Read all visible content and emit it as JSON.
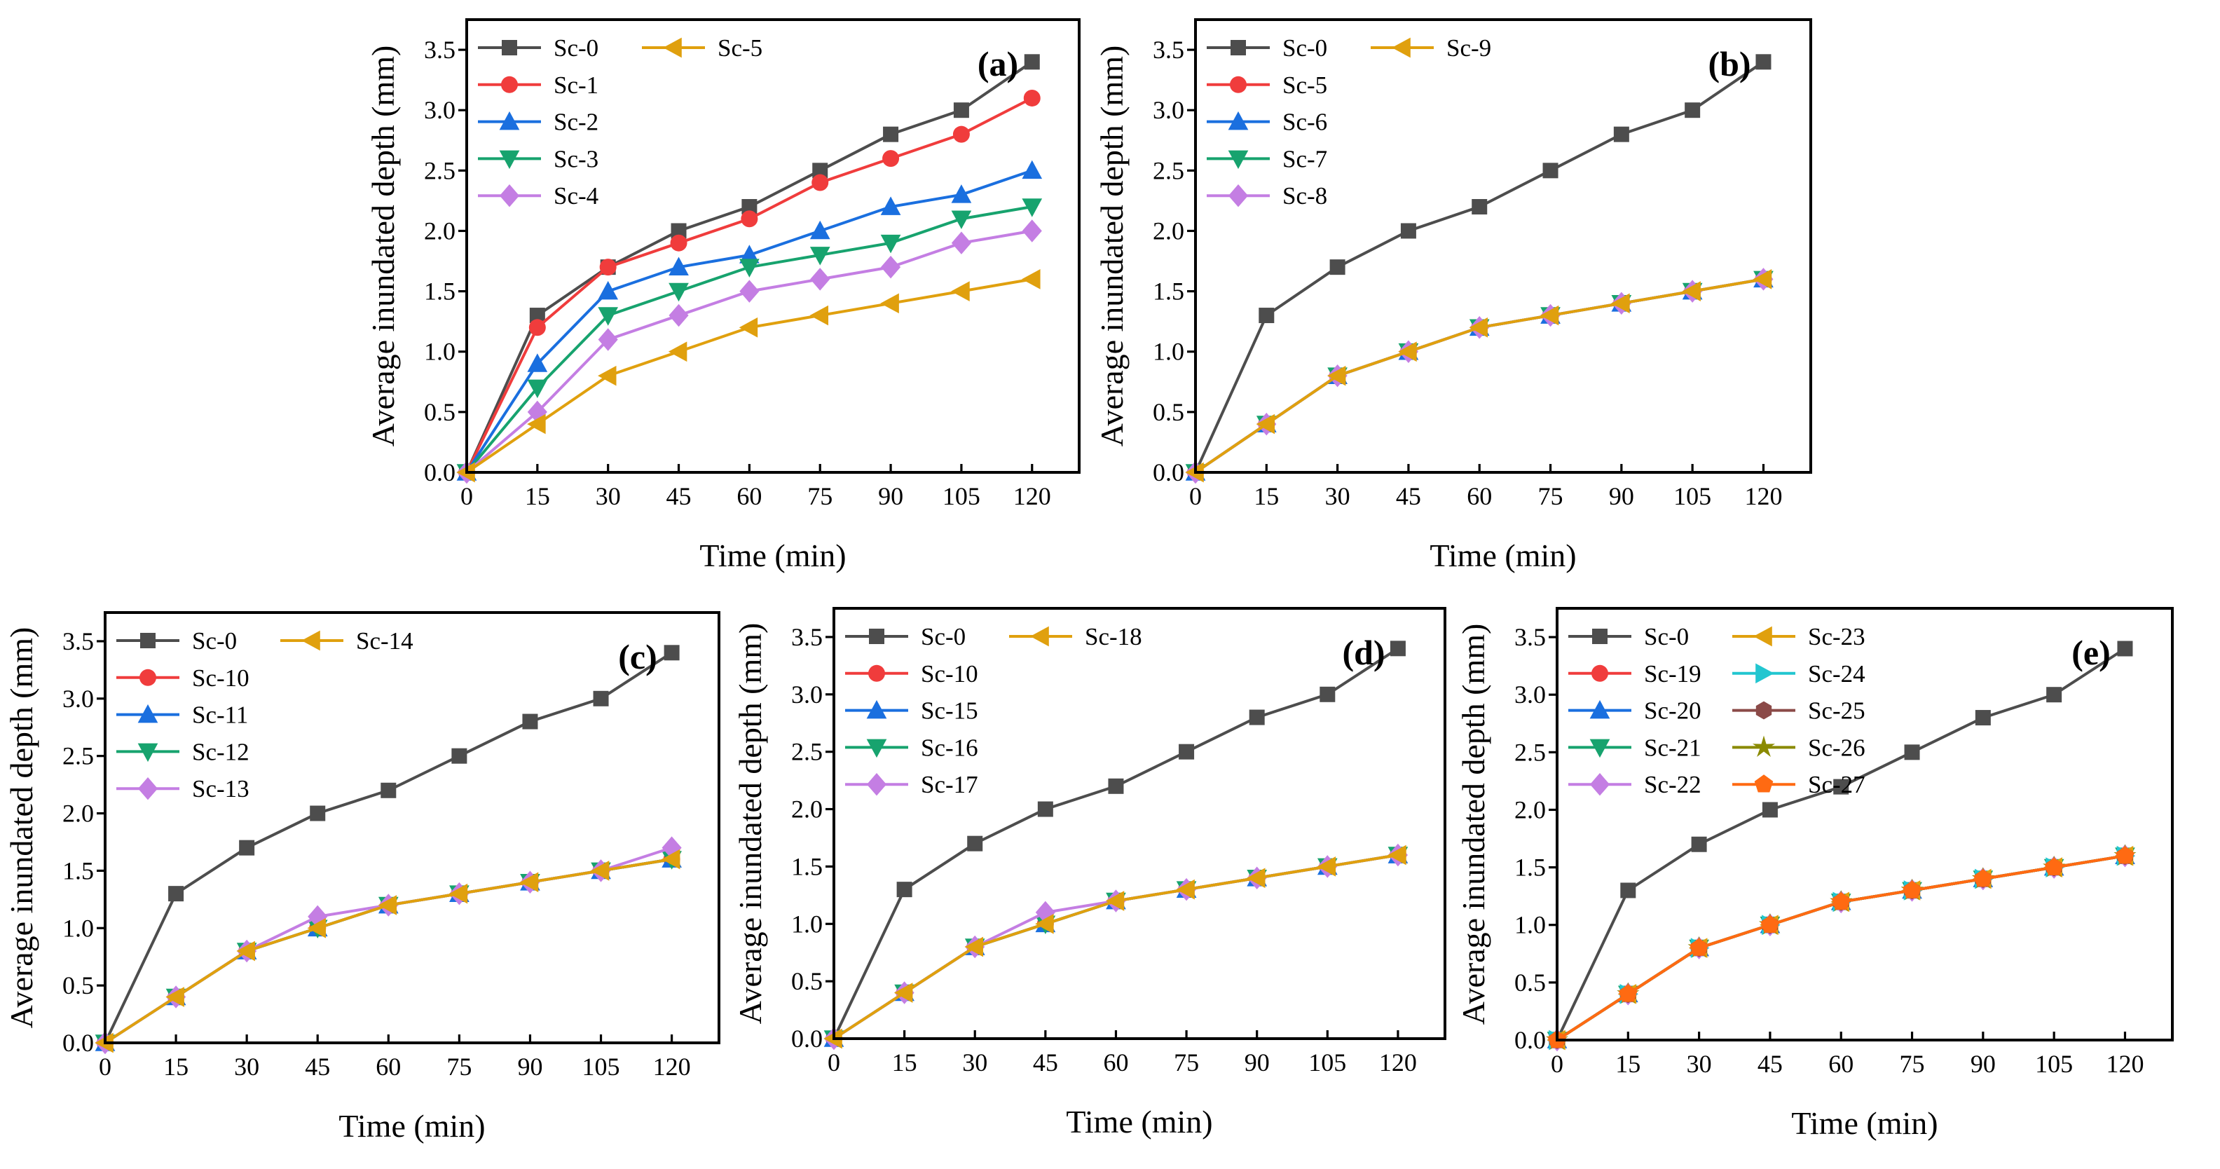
{
  "chart_data": [
    {
      "type": "line",
      "panel_label": "(a)",
      "xlabel": "Time (min)",
      "ylabel": "Average inundated depth (mm)",
      "x": [
        0,
        15,
        30,
        45,
        60,
        75,
        90,
        105,
        120
      ],
      "xticks": [
        "0",
        "15",
        "30",
        "45",
        "60",
        "75",
        "90",
        "105",
        "120"
      ],
      "yticks": [
        "0.0",
        "0.5",
        "1.0",
        "1.5",
        "2.0",
        "2.5",
        "3.0",
        "3.5"
      ],
      "xlim": [
        0,
        130
      ],
      "ylim": [
        0,
        3.75
      ],
      "legend_placement": "top-left",
      "legend_columns": 1,
      "series": [
        {
          "name": "Sc-0",
          "color": "#4d4d4d",
          "marker": "square",
          "values": [
            0,
            1.3,
            1.7,
            2.0,
            2.2,
            2.5,
            2.8,
            3.0,
            3.4
          ]
        },
        {
          "name": "Sc-1",
          "color": "#f03c3c",
          "marker": "circle",
          "values": [
            0,
            1.2,
            1.7,
            1.9,
            2.1,
            2.4,
            2.6,
            2.8,
            3.1
          ]
        },
        {
          "name": "Sc-2",
          "color": "#1a6fdf",
          "marker": "triangle-up",
          "values": [
            0,
            0.9,
            1.5,
            1.7,
            1.8,
            2.0,
            2.2,
            2.3,
            2.5
          ]
        },
        {
          "name": "Sc-3",
          "color": "#17a36e",
          "marker": "triangle-down",
          "values": [
            0,
            0.7,
            1.3,
            1.5,
            1.7,
            1.8,
            1.9,
            2.1,
            2.2
          ]
        },
        {
          "name": "Sc-4",
          "color": "#c47ee3",
          "marker": "diamond",
          "values": [
            0,
            0.5,
            1.1,
            1.3,
            1.5,
            1.6,
            1.7,
            1.9,
            2.0
          ]
        },
        {
          "name": "Sc-5",
          "color": "#e0a00e",
          "marker": "triangle-left",
          "values": [
            0,
            0.4,
            0.8,
            1.0,
            1.2,
            1.3,
            1.4,
            1.5,
            1.6
          ]
        }
      ]
    },
    {
      "type": "line",
      "panel_label": "(b)",
      "xlabel": "Time (min)",
      "ylabel": "Average inundated depth (mm)",
      "x": [
        0,
        15,
        30,
        45,
        60,
        75,
        90,
        105,
        120
      ],
      "xticks": [
        "0",
        "15",
        "30",
        "45",
        "60",
        "75",
        "90",
        "105",
        "120"
      ],
      "yticks": [
        "0.0",
        "0.5",
        "1.0",
        "1.5",
        "2.0",
        "2.5",
        "3.0",
        "3.5"
      ],
      "xlim": [
        0,
        130
      ],
      "ylim": [
        0,
        3.75
      ],
      "legend_placement": "top-left",
      "legend_columns": 1,
      "series": [
        {
          "name": "Sc-0",
          "color": "#4d4d4d",
          "marker": "square",
          "values": [
            0,
            1.3,
            1.7,
            2.0,
            2.2,
            2.5,
            2.8,
            3.0,
            3.4
          ]
        },
        {
          "name": "Sc-5",
          "color": "#f03c3c",
          "marker": "circle",
          "values": [
            0,
            0.4,
            0.8,
            1.0,
            1.2,
            1.3,
            1.4,
            1.5,
            1.6
          ]
        },
        {
          "name": "Sc-6",
          "color": "#1a6fdf",
          "marker": "triangle-up",
          "values": [
            0,
            0.4,
            0.8,
            1.0,
            1.2,
            1.3,
            1.4,
            1.5,
            1.6
          ]
        },
        {
          "name": "Sc-7",
          "color": "#17a36e",
          "marker": "triangle-down",
          "values": [
            0,
            0.4,
            0.8,
            1.0,
            1.2,
            1.3,
            1.4,
            1.5,
            1.6
          ]
        },
        {
          "name": "Sc-8",
          "color": "#c47ee3",
          "marker": "diamond",
          "values": [
            0,
            0.4,
            0.8,
            1.0,
            1.2,
            1.3,
            1.4,
            1.5,
            1.6
          ]
        },
        {
          "name": "Sc-9",
          "color": "#e0a00e",
          "marker": "triangle-left",
          "values": [
            0,
            0.4,
            0.8,
            1.0,
            1.2,
            1.3,
            1.4,
            1.5,
            1.6
          ]
        }
      ]
    },
    {
      "type": "line",
      "panel_label": "(c)",
      "xlabel": "Time (min)",
      "ylabel": "Average inundated depth (mm)",
      "x": [
        0,
        15,
        30,
        45,
        60,
        75,
        90,
        105,
        120
      ],
      "xticks": [
        "0",
        "15",
        "30",
        "45",
        "60",
        "75",
        "90",
        "105",
        "120"
      ],
      "yticks": [
        "0.0",
        "0.5",
        "1.0",
        "1.5",
        "2.0",
        "2.5",
        "3.0",
        "3.5"
      ],
      "xlim": [
        0,
        130
      ],
      "ylim": [
        0,
        3.75
      ],
      "legend_placement": "top-left",
      "legend_columns": 1,
      "series": [
        {
          "name": "Sc-0",
          "color": "#4d4d4d",
          "marker": "square",
          "values": [
            0,
            1.3,
            1.7,
            2.0,
            2.2,
            2.5,
            2.8,
            3.0,
            3.4
          ]
        },
        {
          "name": "Sc-10",
          "color": "#f03c3c",
          "marker": "circle",
          "values": [
            0,
            0.4,
            0.8,
            1.0,
            1.2,
            1.3,
            1.4,
            1.5,
            1.6
          ]
        },
        {
          "name": "Sc-11",
          "color": "#1a6fdf",
          "marker": "triangle-up",
          "values": [
            0,
            0.4,
            0.8,
            1.0,
            1.2,
            1.3,
            1.4,
            1.5,
            1.6
          ]
        },
        {
          "name": "Sc-12",
          "color": "#17a36e",
          "marker": "triangle-down",
          "values": [
            0,
            0.4,
            0.8,
            1.0,
            1.2,
            1.3,
            1.4,
            1.5,
            1.6
          ]
        },
        {
          "name": "Sc-13",
          "color": "#c47ee3",
          "marker": "diamond",
          "values": [
            0,
            0.4,
            0.8,
            1.1,
            1.2,
            1.3,
            1.4,
            1.5,
            1.7
          ]
        },
        {
          "name": "Sc-14",
          "color": "#e0a00e",
          "marker": "triangle-left",
          "values": [
            0,
            0.4,
            0.8,
            1.0,
            1.2,
            1.3,
            1.4,
            1.5,
            1.6
          ]
        }
      ]
    },
    {
      "type": "line",
      "panel_label": "(d)",
      "xlabel": "Time (min)",
      "ylabel": "Average inundated depth (mm)",
      "x": [
        0,
        15,
        30,
        45,
        60,
        75,
        90,
        105,
        120
      ],
      "xticks": [
        "0",
        "15",
        "30",
        "45",
        "60",
        "75",
        "90",
        "105",
        "120"
      ],
      "yticks": [
        "0.0",
        "0.5",
        "1.0",
        "1.5",
        "2.0",
        "2.5",
        "3.0",
        "3.5"
      ],
      "xlim": [
        0,
        130
      ],
      "ylim": [
        0,
        3.75
      ],
      "legend_placement": "top-left",
      "legend_columns": 1,
      "series": [
        {
          "name": "Sc-0",
          "color": "#4d4d4d",
          "marker": "square",
          "values": [
            0,
            1.3,
            1.7,
            2.0,
            2.2,
            2.5,
            2.8,
            3.0,
            3.4
          ]
        },
        {
          "name": "Sc-10",
          "color": "#f03c3c",
          "marker": "circle",
          "values": [
            0,
            0.4,
            0.8,
            1.0,
            1.2,
            1.3,
            1.4,
            1.5,
            1.6
          ]
        },
        {
          "name": "Sc-15",
          "color": "#1a6fdf",
          "marker": "triangle-up",
          "values": [
            0,
            0.4,
            0.8,
            1.0,
            1.2,
            1.3,
            1.4,
            1.5,
            1.6
          ]
        },
        {
          "name": "Sc-16",
          "color": "#17a36e",
          "marker": "triangle-down",
          "values": [
            0,
            0.4,
            0.8,
            1.0,
            1.2,
            1.3,
            1.4,
            1.5,
            1.6
          ]
        },
        {
          "name": "Sc-17",
          "color": "#c47ee3",
          "marker": "diamond",
          "values": [
            0,
            0.4,
            0.8,
            1.1,
            1.2,
            1.3,
            1.4,
            1.5,
            1.6
          ]
        },
        {
          "name": "Sc-18",
          "color": "#e0a00e",
          "marker": "triangle-left",
          "values": [
            0,
            0.4,
            0.8,
            1.0,
            1.2,
            1.3,
            1.4,
            1.5,
            1.6
          ]
        }
      ]
    },
    {
      "type": "line",
      "panel_label": "(e)",
      "xlabel": "Time (min)",
      "ylabel": "Average inundated depth (mm)",
      "x": [
        0,
        15,
        30,
        45,
        60,
        75,
        90,
        105,
        120
      ],
      "xticks": [
        "0",
        "15",
        "30",
        "45",
        "60",
        "75",
        "90",
        "105",
        "120"
      ],
      "yticks": [
        "0.0",
        "0.5",
        "1.0",
        "1.5",
        "2.0",
        "2.5",
        "3.0",
        "3.5"
      ],
      "xlim": [
        0,
        130
      ],
      "ylim": [
        0,
        3.75
      ],
      "legend_placement": "top-left",
      "legend_columns": 3,
      "series": [
        {
          "name": "Sc-0",
          "color": "#4d4d4d",
          "marker": "square",
          "values": [
            0,
            1.3,
            1.7,
            2.0,
            2.2,
            2.5,
            2.8,
            3.0,
            3.4
          ]
        },
        {
          "name": "Sc-19",
          "color": "#f03c3c",
          "marker": "circle",
          "values": [
            0,
            0.4,
            0.8,
            1.0,
            1.2,
            1.3,
            1.4,
            1.5,
            1.6
          ]
        },
        {
          "name": "Sc-20",
          "color": "#1a6fdf",
          "marker": "triangle-up",
          "values": [
            0,
            0.4,
            0.8,
            1.0,
            1.2,
            1.3,
            1.4,
            1.5,
            1.6
          ]
        },
        {
          "name": "Sc-21",
          "color": "#17a36e",
          "marker": "triangle-down",
          "values": [
            0,
            0.4,
            0.8,
            1.0,
            1.2,
            1.3,
            1.4,
            1.5,
            1.6
          ]
        },
        {
          "name": "Sc-22",
          "color": "#c47ee3",
          "marker": "diamond",
          "values": [
            0,
            0.4,
            0.8,
            1.0,
            1.2,
            1.3,
            1.4,
            1.5,
            1.6
          ]
        },
        {
          "name": "Sc-23",
          "color": "#e0a00e",
          "marker": "triangle-left",
          "values": [
            0,
            0.4,
            0.8,
            1.0,
            1.2,
            1.3,
            1.4,
            1.5,
            1.6
          ]
        },
        {
          "name": "Sc-24",
          "color": "#22c6d0",
          "marker": "triangle-right",
          "values": [
            0,
            0.4,
            0.8,
            1.0,
            1.2,
            1.3,
            1.4,
            1.5,
            1.6
          ]
        },
        {
          "name": "Sc-25",
          "color": "#8b4a48",
          "marker": "hexagon",
          "values": [
            0,
            0.4,
            0.8,
            1.0,
            1.2,
            1.3,
            1.4,
            1.5,
            1.6
          ]
        },
        {
          "name": "Sc-26",
          "color": "#8a8a00",
          "marker": "star",
          "values": [
            0,
            0.4,
            0.8,
            1.0,
            1.2,
            1.3,
            1.4,
            1.5,
            1.6
          ]
        },
        {
          "name": "Sc-27",
          "color": "#ff6a12",
          "marker": "pentagon",
          "values": [
            0,
            0.4,
            0.8,
            1.0,
            1.2,
            1.3,
            1.4,
            1.5,
            1.6
          ]
        }
      ]
    }
  ]
}
